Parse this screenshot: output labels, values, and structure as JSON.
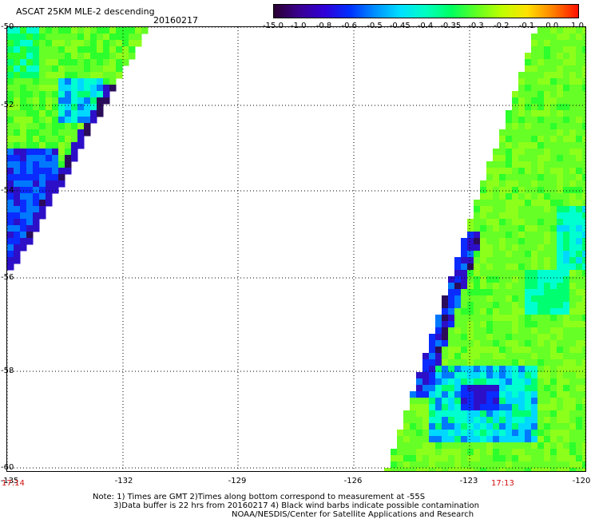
{
  "header": {
    "title": "ASCAT 25KM MLE-2 descending",
    "date": "20160217"
  },
  "colorbar": {
    "labels": [
      "-15.0",
      "-1.0",
      "-0.8",
      "-0.6",
      "-0.5",
      "-0.45",
      "-0.4",
      "-0.35",
      "-0.3",
      "-0.2",
      "-0.1",
      "0.0",
      "1.0"
    ],
    "colors": [
      "#2a0030",
      "#3a0090",
      "#3000d8",
      "#0030ff",
      "#0090ff",
      "#00e0ff",
      "#00ffc0",
      "#00ff60",
      "#60ff20",
      "#c0ff00",
      "#ffe000",
      "#ff8000",
      "#ff1000"
    ]
  },
  "map": {
    "lat_labels": [
      "-50",
      "-52",
      "-54",
      "-56",
      "-58",
      "-60"
    ],
    "lon_labels": [
      "-135",
      "-132",
      "-129",
      "-126",
      "-123",
      "-120"
    ],
    "time_labels": [
      "17:14",
      "17:13"
    ],
    "lat_range": [
      -60,
      -50
    ],
    "lon_range": [
      -135,
      -120
    ]
  },
  "notes": [
    "Note: 1) Times are GMT 2)Times along bottom correspond to measurement at -55S",
    "3)Data buffer is 22 hrs from 20160217 4) Black wind barbs indicate possible contamination",
    "NOAA/NESDIS/Center for Satellite Applications and Research"
  ]
}
